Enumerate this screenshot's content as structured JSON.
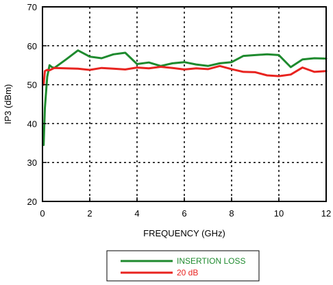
{
  "chart_data": {
    "type": "line",
    "title": "",
    "xlabel": "FREQUENCY (GHz)",
    "ylabel": "IP3 (dBm)",
    "xlim": [
      0,
      12
    ],
    "ylim": [
      20,
      70
    ],
    "xticks": [
      0,
      2,
      4,
      6,
      8,
      10,
      12
    ],
    "yticks": [
      20,
      30,
      40,
      50,
      60,
      70
    ],
    "xtick_labels": [
      "0",
      "2",
      "4",
      "6",
      "8",
      "10",
      "12"
    ],
    "ytick_labels": [
      "20",
      "30",
      "40",
      "50",
      "60",
      "70"
    ],
    "grid": true,
    "grid_style": "dotted",
    "legend_position": "bottom-center",
    "series": [
      {
        "name": "INSERTION LOSS",
        "color": "#1e8a2e",
        "x": [
          0.05,
          0.1,
          0.2,
          0.3,
          0.4,
          0.5,
          1.0,
          1.5,
          2.0,
          2.5,
          3.0,
          3.5,
          4.0,
          4.5,
          5.0,
          5.5,
          6.0,
          6.5,
          7.0,
          7.5,
          8.0,
          8.5,
          9.0,
          9.5,
          10.0,
          10.5,
          11.0,
          11.5,
          12.0
        ],
        "y": [
          34.5,
          44.0,
          52.0,
          55.0,
          54.5,
          54.3,
          56.5,
          58.8,
          57.2,
          56.8,
          57.8,
          58.2,
          55.3,
          55.7,
          54.8,
          55.5,
          55.8,
          55.2,
          54.8,
          55.5,
          55.8,
          57.4,
          57.6,
          57.8,
          57.6,
          54.5,
          56.5,
          56.8,
          56.7
        ]
      },
      {
        "name": "20 dB",
        "color": "#e8231f",
        "x": [
          0.05,
          0.1,
          0.2,
          0.3,
          0.4,
          0.5,
          1.0,
          1.5,
          2.0,
          2.5,
          3.0,
          3.5,
          4.0,
          4.5,
          5.0,
          5.5,
          6.0,
          6.5,
          7.0,
          7.5,
          8.0,
          8.5,
          9.0,
          9.5,
          10.0,
          10.5,
          11.0,
          11.5,
          12.0
        ],
        "y": [
          50.0,
          53.5,
          53.8,
          53.7,
          54.0,
          54.3,
          54.2,
          54.1,
          53.8,
          54.3,
          54.1,
          53.9,
          54.4,
          54.2,
          54.6,
          54.3,
          53.9,
          54.2,
          54.0,
          54.8,
          54.0,
          53.3,
          53.2,
          52.4,
          52.2,
          52.6,
          54.4,
          53.3,
          53.5
        ]
      }
    ]
  }
}
